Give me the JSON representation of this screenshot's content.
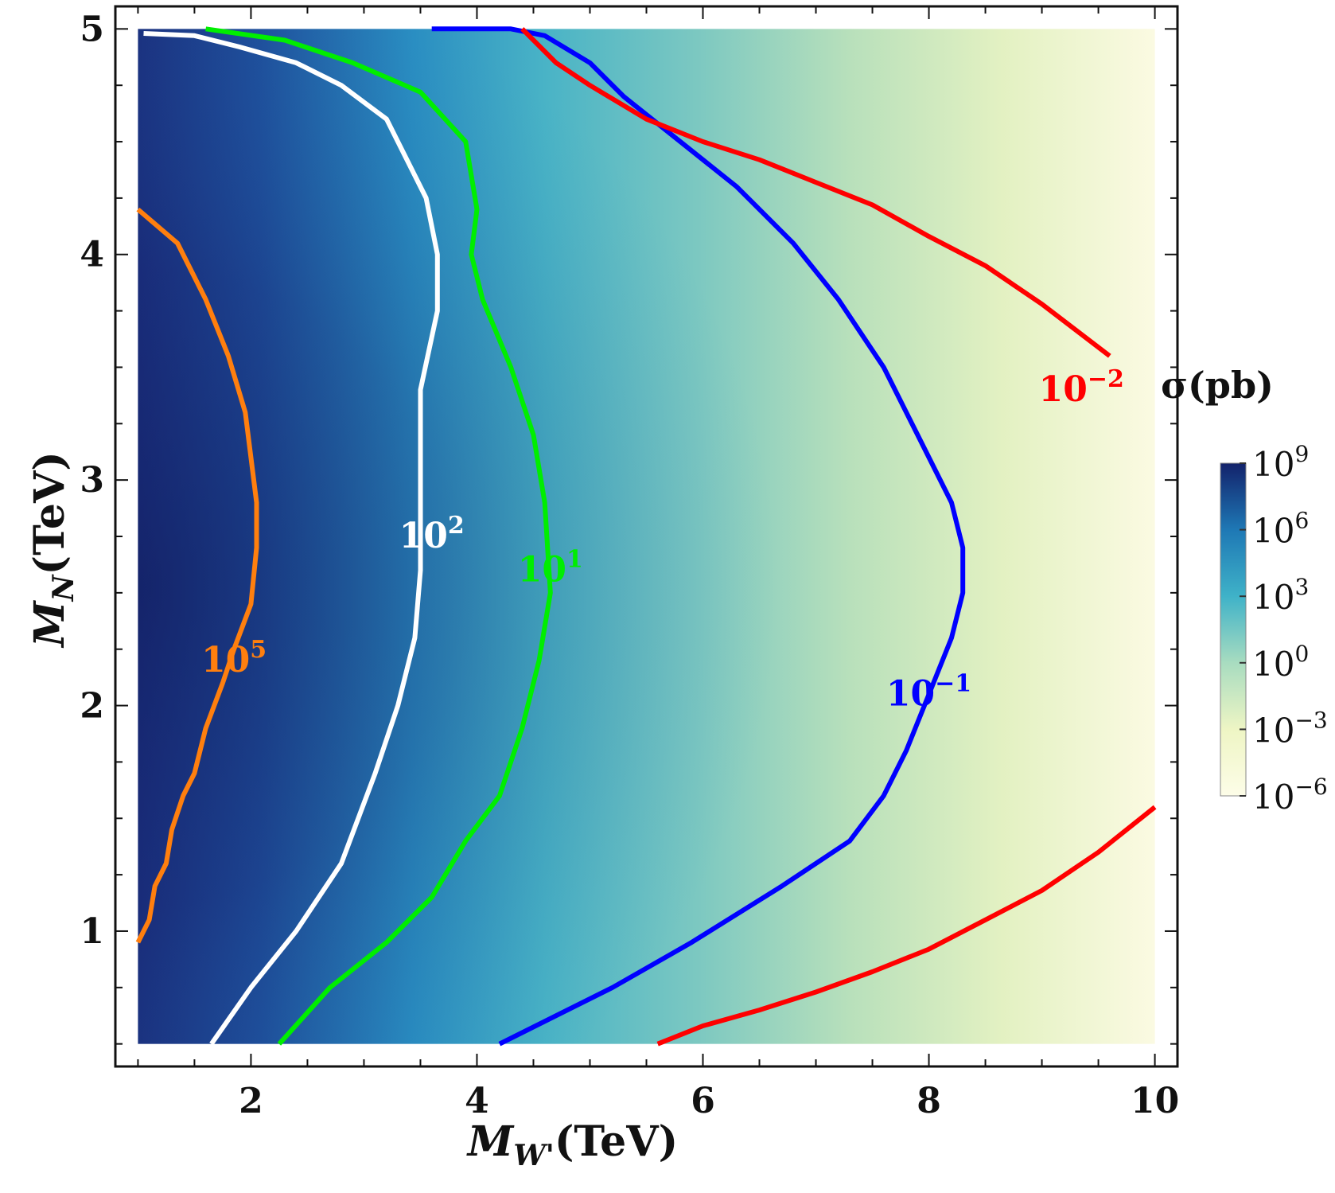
{
  "chart_data": {
    "type": "contour",
    "xlabel": {
      "sym": "M",
      "sub": "W'",
      "unit": "(TeV)"
    },
    "ylabel": {
      "sym": "M",
      "sub": "N",
      "unit": "(TeV)"
    },
    "xlim": [
      0.8,
      10.2
    ],
    "ylim": [
      0.4,
      5.1
    ],
    "data_extent": {
      "x": [
        1,
        10
      ],
      "y": [
        0.5,
        5
      ]
    },
    "x_ticks": [
      2,
      4,
      6,
      8,
      10
    ],
    "y_ticks": [
      1,
      2,
      3,
      4,
      5
    ],
    "colorbar": {
      "title": "σ(pb)",
      "scale": "log10",
      "range": [
        -6,
        9
      ],
      "tick_exponents": [
        9,
        6,
        3,
        0,
        -3,
        -6
      ],
      "tick_labels": [
        "10^9",
        "10^6",
        "10^3",
        "10^0",
        "10^-3",
        "10^-6"
      ],
      "colors": [
        "#fdfde8",
        "#eef5c4",
        "#a8dcc0",
        "#3fb2c8",
        "#1e78b5",
        "#13226b"
      ]
    },
    "grid": false,
    "contours": [
      {
        "label": "10^5",
        "color": "#ff7f0e",
        "label_pos": [
          1.85,
          2.2
        ],
        "points": [
          [
            1.0,
            0.95
          ],
          [
            1.1,
            1.05
          ],
          [
            1.15,
            1.2
          ],
          [
            1.25,
            1.3
          ],
          [
            1.3,
            1.45
          ],
          [
            1.4,
            1.6
          ],
          [
            1.5,
            1.7
          ],
          [
            1.6,
            1.9
          ],
          [
            1.75,
            2.1
          ],
          [
            1.85,
            2.25
          ],
          [
            2.0,
            2.45
          ],
          [
            2.05,
            2.7
          ],
          [
            2.05,
            2.9
          ],
          [
            2.0,
            3.1
          ],
          [
            1.95,
            3.3
          ],
          [
            1.8,
            3.55
          ],
          [
            1.6,
            3.8
          ],
          [
            1.35,
            4.05
          ],
          [
            1.0,
            4.2
          ]
        ]
      },
      {
        "label": "10^2",
        "color": "#ffffff",
        "label_pos": [
          3.6,
          2.75
        ],
        "points": [
          [
            1.65,
            0.5
          ],
          [
            2.0,
            0.75
          ],
          [
            2.4,
            1.0
          ],
          [
            2.8,
            1.3
          ],
          [
            3.1,
            1.7
          ],
          [
            3.3,
            2.0
          ],
          [
            3.45,
            2.3
          ],
          [
            3.5,
            2.6
          ],
          [
            3.5,
            3.0
          ],
          [
            3.5,
            3.4
          ],
          [
            3.65,
            3.75
          ],
          [
            3.65,
            4.0
          ],
          [
            3.55,
            4.25
          ],
          [
            3.2,
            4.6
          ],
          [
            2.8,
            4.75
          ],
          [
            2.4,
            4.85
          ],
          [
            1.9,
            4.92
          ],
          [
            1.5,
            4.97
          ],
          [
            1.05,
            4.98
          ]
        ]
      },
      {
        "label": "10^1",
        "color": "#00ee00",
        "label_pos": [
          4.65,
          2.6
        ],
        "points": [
          [
            2.25,
            0.5
          ],
          [
            2.7,
            0.75
          ],
          [
            3.2,
            0.95
          ],
          [
            3.6,
            1.15
          ],
          [
            3.9,
            1.4
          ],
          [
            4.2,
            1.6
          ],
          [
            4.4,
            1.9
          ],
          [
            4.55,
            2.2
          ],
          [
            4.65,
            2.5
          ],
          [
            4.6,
            2.9
          ],
          [
            4.5,
            3.2
          ],
          [
            4.3,
            3.5
          ],
          [
            4.05,
            3.8
          ],
          [
            3.95,
            4.0
          ],
          [
            4.0,
            4.2
          ],
          [
            3.9,
            4.5
          ],
          [
            3.5,
            4.72
          ],
          [
            2.9,
            4.85
          ],
          [
            2.3,
            4.95
          ],
          [
            1.6,
            5.0
          ]
        ]
      },
      {
        "label": "10^-1",
        "color": "#0000ff",
        "label_pos": [
          8.0,
          2.05
        ],
        "points": [
          [
            4.2,
            0.5
          ],
          [
            4.6,
            0.6
          ],
          [
            5.2,
            0.75
          ],
          [
            5.9,
            0.95
          ],
          [
            6.7,
            1.2
          ],
          [
            7.3,
            1.4
          ],
          [
            7.6,
            1.6
          ],
          [
            7.8,
            1.8
          ],
          [
            8.0,
            2.05
          ],
          [
            8.2,
            2.3
          ],
          [
            8.3,
            2.5
          ],
          [
            8.3,
            2.7
          ],
          [
            8.2,
            2.9
          ],
          [
            7.9,
            3.2
          ],
          [
            7.6,
            3.5
          ],
          [
            7.2,
            3.8
          ],
          [
            6.8,
            4.05
          ],
          [
            6.3,
            4.3
          ],
          [
            5.8,
            4.5
          ],
          [
            5.3,
            4.7
          ],
          [
            5.0,
            4.85
          ],
          [
            4.6,
            4.97
          ],
          [
            4.3,
            5.0
          ],
          [
            3.6,
            5.0
          ]
        ]
      },
      {
        "label": "10^-2",
        "color": "#ff0000",
        "label_pos": [
          9.35,
          3.4
        ],
        "points": [
          [
            4.4,
            5.0
          ],
          [
            4.7,
            4.85
          ],
          [
            5.0,
            4.75
          ],
          [
            5.5,
            4.6
          ],
          [
            6.0,
            4.5
          ],
          [
            6.5,
            4.42
          ],
          [
            7.0,
            4.32
          ],
          [
            7.5,
            4.22
          ],
          [
            8.0,
            4.08
          ],
          [
            8.5,
            3.95
          ],
          [
            9.0,
            3.78
          ],
          [
            9.6,
            3.55
          ]
        ]
      },
      {
        "label": "",
        "color": "#ff0000",
        "label_pos": null,
        "points": [
          [
            5.6,
            0.5
          ],
          [
            6.0,
            0.58
          ],
          [
            6.5,
            0.65
          ],
          [
            7.0,
            0.73
          ],
          [
            7.5,
            0.82
          ],
          [
            8.0,
            0.92
          ],
          [
            8.5,
            1.05
          ],
          [
            9.0,
            1.18
          ],
          [
            9.5,
            1.35
          ],
          [
            10.0,
            1.55
          ]
        ]
      }
    ]
  }
}
